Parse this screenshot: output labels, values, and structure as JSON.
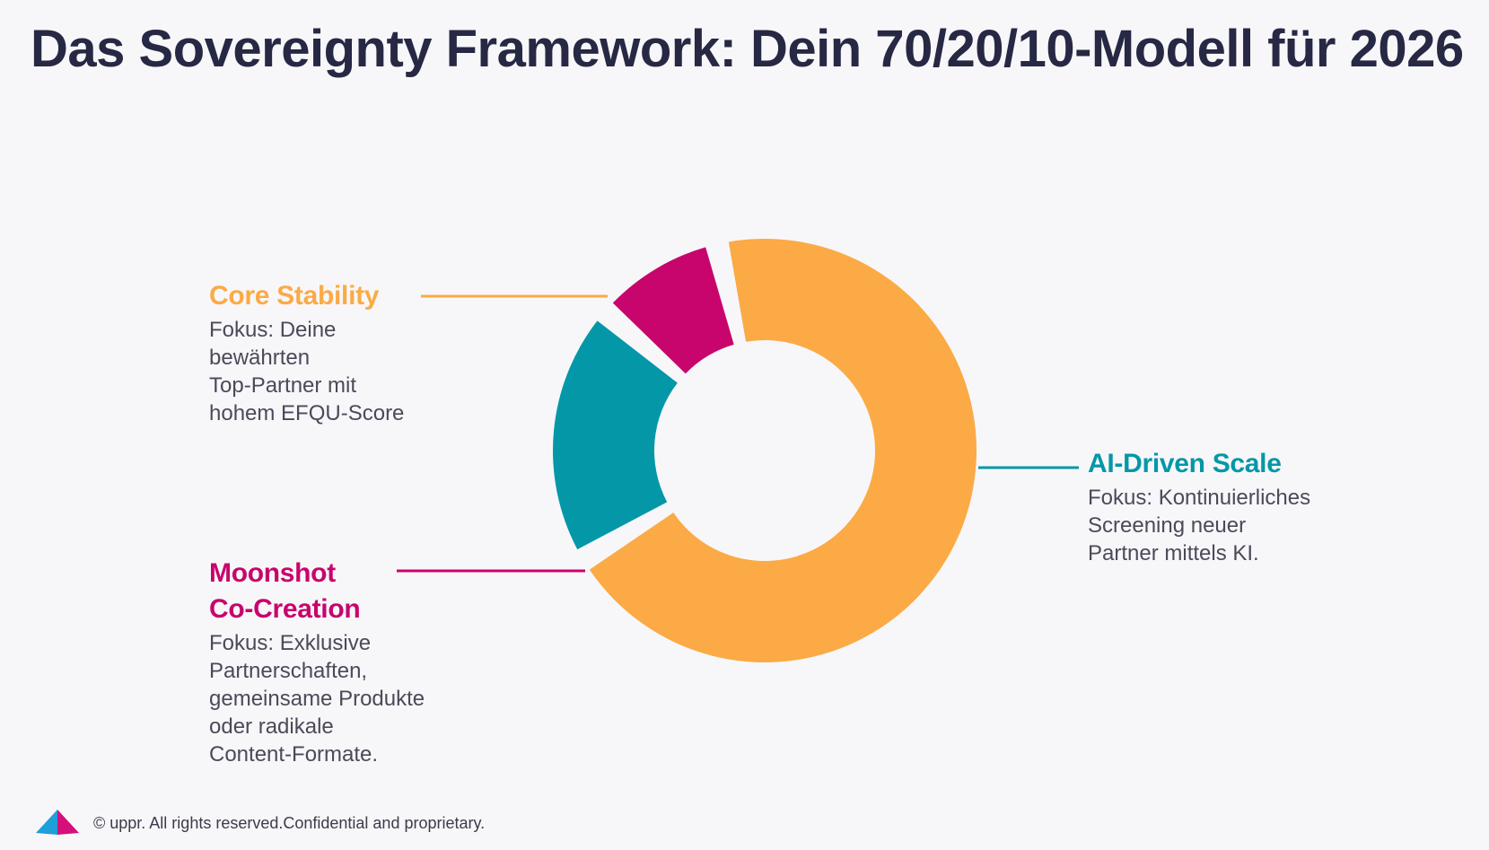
{
  "title": "Das Sovereignty Framework: Dein 70/20/10-Modell für 2026",
  "chart_data": {
    "type": "pie",
    "style": "donut",
    "segments": [
      {
        "name": "Core Stability",
        "value": 70,
        "color": "#fbaa45",
        "description": "Fokus: Deine\nbewährten\nTop-Partner mit\nhohem EFQU-Score"
      },
      {
        "name": "AI-Driven Scale",
        "value": 20,
        "color": "#0497a8",
        "description": "Fokus: Kontinuierliches\nScreening neuer\nPartner mittels KI."
      },
      {
        "name": "Moonshot Co-Creation",
        "value": 10,
        "color": "#c8046d",
        "description": "Fokus: Exklusive\nPartnerschaften,\ngemeinsame Produkte\noder radikale\nContent-Formate."
      }
    ],
    "legend_placement": "callouts"
  },
  "labels": {
    "core_name": "Core Stability",
    "ai_name": "AI-Driven Scale",
    "moon_name_1": "Moonshot",
    "moon_name_2": "Co-Creation"
  },
  "footer": {
    "text": "© uppr.  All rights reserved.Confidential and proprietary.",
    "logo_icon": "uppr-logo-icon"
  }
}
